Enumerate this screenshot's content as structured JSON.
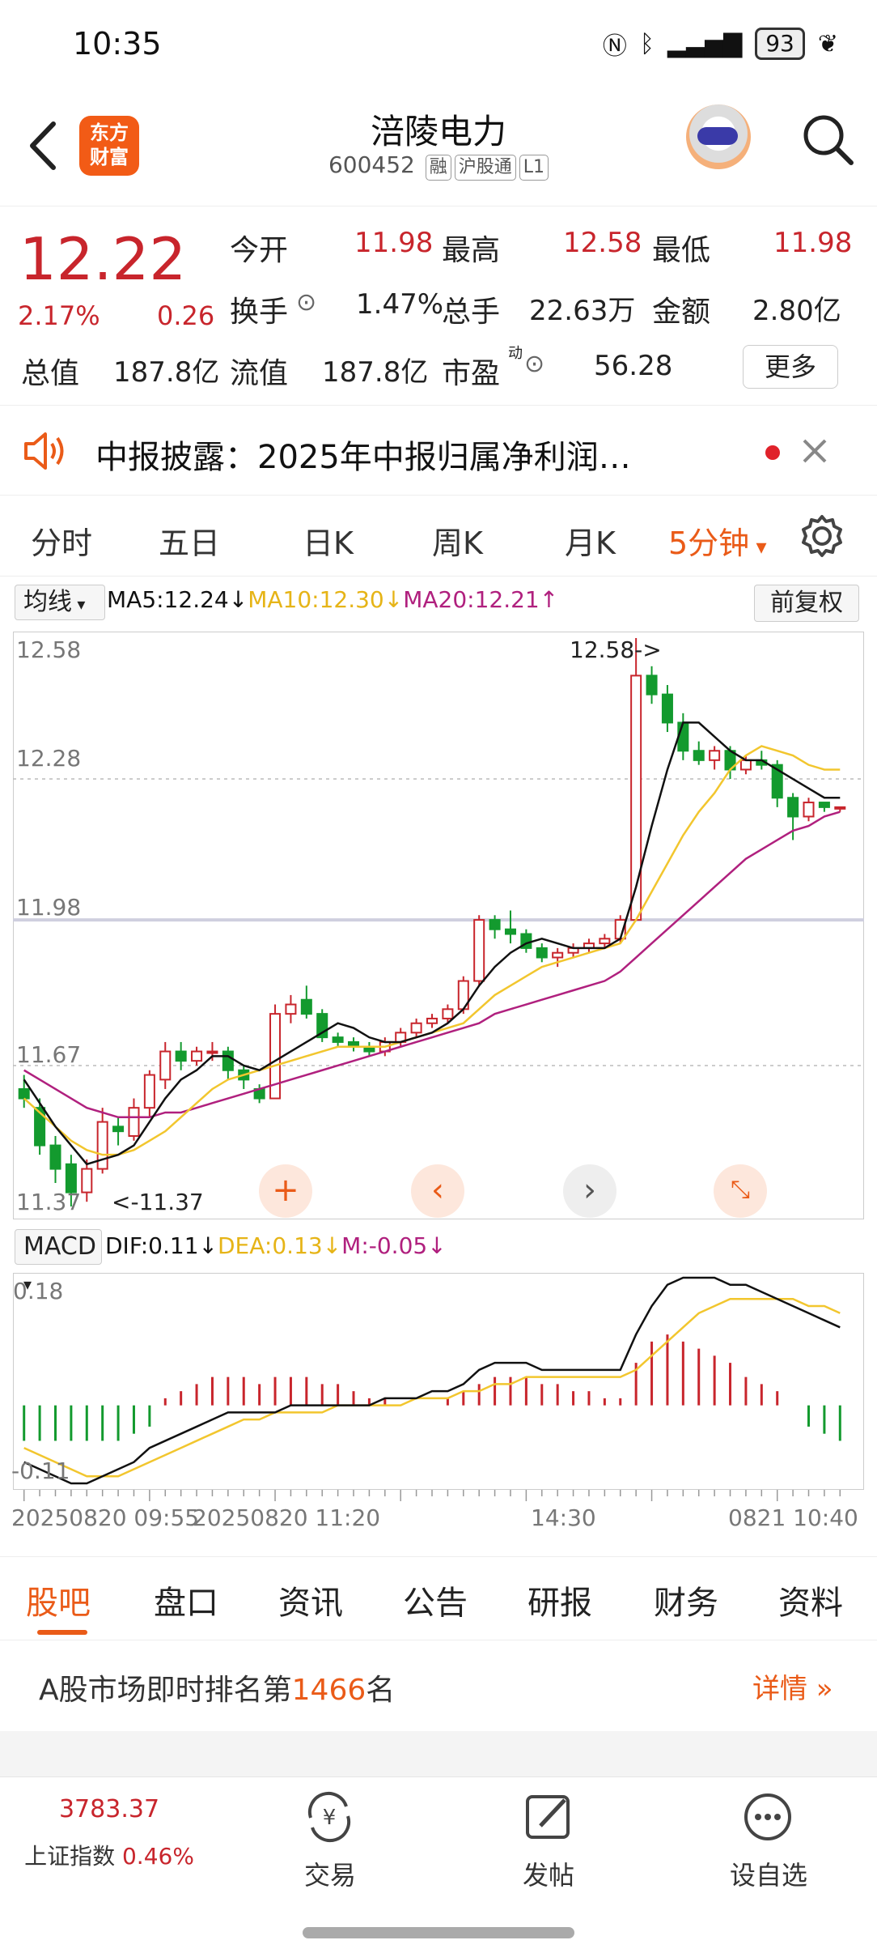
{
  "status_bar": {
    "time": "10:35",
    "battery": "93"
  },
  "header": {
    "logo_line1": "东方",
    "logo_line2": "财富",
    "stock_name": "涪陵电力",
    "stock_code": "600452",
    "tags": [
      "融",
      "沪股通",
      "L1"
    ]
  },
  "quote": {
    "price": "12.22",
    "change_pct": "2.17%",
    "change": "0.26",
    "open_label": "今开",
    "open": "11.98",
    "high_label": "最高",
    "high": "12.58",
    "low_label": "最低",
    "low": "11.98",
    "turnover_label": "换手",
    "turnover": "1.47%",
    "volume_label": "总手",
    "volume": "22.63万",
    "amount_label": "金额",
    "amount": "2.80亿",
    "total_cap_label": "总值",
    "total_cap": "187.8亿",
    "float_cap_label": "流值",
    "float_cap": "187.8亿",
    "pe_label": "市盈",
    "pe_sup": "动",
    "pe": "56.28",
    "more_label": "更多"
  },
  "notice": {
    "text": "中报披露：2025年中报归属净利润…"
  },
  "period_tabs": [
    "分时",
    "五日",
    "日K",
    "周K",
    "月K",
    "5分钟"
  ],
  "active_period": "5分钟",
  "ma_bar": {
    "button": "均线",
    "ma5": "MA5:12.24↓",
    "ma10": "MA10:12.30↓",
    "ma20": "MA20:12.21↑",
    "adjust_button": "前复权"
  },
  "kline_chart": {
    "y_labels": [
      "12.58",
      "12.28",
      "11.98",
      "11.67",
      "11.37"
    ],
    "max_annotation": "12.58->",
    "min_annotation": "<-11.37"
  },
  "macd_bar": {
    "button": "MACD",
    "dif": "DIF:0.11↓",
    "dea": "DEA:0.13↓",
    "m": "M:-0.05↓"
  },
  "macd_chart": {
    "y_top": "0.18",
    "y_bottom": "-0.11"
  },
  "time_axis": [
    "20250820 09:55",
    "20250820 11:20",
    "14:30",
    "0821 10:40"
  ],
  "chart_data": [
    {
      "type": "candlestick",
      "ylim": [
        11.37,
        12.58
      ],
      "candles": [
        {
          "o": 11.62,
          "c": 11.6,
          "h": 11.65,
          "l": 11.58
        },
        {
          "o": 11.58,
          "c": 11.5,
          "h": 11.6,
          "l": 11.48
        },
        {
          "o": 11.5,
          "c": 11.45,
          "h": 11.52,
          "l": 11.42
        },
        {
          "o": 11.46,
          "c": 11.4,
          "h": 11.48,
          "l": 11.37
        },
        {
          "o": 11.4,
          "c": 11.45,
          "h": 11.47,
          "l": 11.38
        },
        {
          "o": 11.45,
          "c": 11.55,
          "h": 11.58,
          "l": 11.44
        },
        {
          "o": 11.54,
          "c": 11.53,
          "h": 11.56,
          "l": 11.5
        },
        {
          "o": 11.52,
          "c": 11.58,
          "h": 11.6,
          "l": 11.51
        },
        {
          "o": 11.58,
          "c": 11.65,
          "h": 11.66,
          "l": 11.56
        },
        {
          "o": 11.64,
          "c": 11.7,
          "h": 11.72,
          "l": 11.62
        },
        {
          "o": 11.7,
          "c": 11.68,
          "h": 11.72,
          "l": 11.66
        },
        {
          "o": 11.68,
          "c": 11.7,
          "h": 11.71,
          "l": 11.67
        },
        {
          "o": 11.7,
          "c": 11.7,
          "h": 11.72,
          "l": 11.68
        },
        {
          "o": 11.7,
          "c": 11.66,
          "h": 11.71,
          "l": 11.64
        },
        {
          "o": 11.66,
          "c": 11.64,
          "h": 11.67,
          "l": 11.62
        },
        {
          "o": 11.62,
          "c": 11.6,
          "h": 11.63,
          "l": 11.59
        },
        {
          "o": 11.6,
          "c": 11.78,
          "h": 11.8,
          "l": 11.6
        },
        {
          "o": 11.78,
          "c": 11.8,
          "h": 11.82,
          "l": 11.76
        },
        {
          "o": 11.81,
          "c": 11.78,
          "h": 11.84,
          "l": 11.77
        },
        {
          "o": 11.78,
          "c": 11.73,
          "h": 11.79,
          "l": 11.72
        },
        {
          "o": 11.73,
          "c": 11.72,
          "h": 11.74,
          "l": 11.71
        },
        {
          "o": 11.72,
          "c": 11.71,
          "h": 11.73,
          "l": 11.7
        },
        {
          "o": 11.71,
          "c": 11.7,
          "h": 11.72,
          "l": 11.69
        },
        {
          "o": 11.7,
          "c": 11.72,
          "h": 11.73,
          "l": 11.69
        },
        {
          "o": 11.72,
          "c": 11.74,
          "h": 11.75,
          "l": 11.71
        },
        {
          "o": 11.74,
          "c": 11.76,
          "h": 11.77,
          "l": 11.73
        },
        {
          "o": 11.76,
          "c": 11.77,
          "h": 11.78,
          "l": 11.75
        },
        {
          "o": 11.77,
          "c": 11.79,
          "h": 11.8,
          "l": 11.76
        },
        {
          "o": 11.79,
          "c": 11.85,
          "h": 11.86,
          "l": 11.78
        },
        {
          "o": 11.85,
          "c": 11.98,
          "h": 11.99,
          "l": 11.84
        },
        {
          "o": 11.98,
          "c": 11.96,
          "h": 11.99,
          "l": 11.94
        },
        {
          "o": 11.96,
          "c": 11.95,
          "h": 12.0,
          "l": 11.93
        },
        {
          "o": 11.95,
          "c": 11.92,
          "h": 11.96,
          "l": 11.91
        },
        {
          "o": 11.92,
          "c": 11.9,
          "h": 11.93,
          "l": 11.89
        },
        {
          "o": 11.9,
          "c": 11.91,
          "h": 11.92,
          "l": 11.88
        },
        {
          "o": 11.91,
          "c": 11.92,
          "h": 11.93,
          "l": 11.9
        },
        {
          "o": 11.92,
          "c": 11.93,
          "h": 11.94,
          "l": 11.91
        },
        {
          "o": 11.93,
          "c": 11.94,
          "h": 11.95,
          "l": 11.92
        },
        {
          "o": 11.94,
          "c": 11.98,
          "h": 11.99,
          "l": 11.93
        },
        {
          "o": 11.98,
          "c": 12.5,
          "h": 12.58,
          "l": 11.98
        },
        {
          "o": 12.5,
          "c": 12.46,
          "h": 12.52,
          "l": 12.44
        },
        {
          "o": 12.46,
          "c": 12.4,
          "h": 12.48,
          "l": 12.38
        },
        {
          "o": 12.4,
          "c": 12.34,
          "h": 12.42,
          "l": 12.32
        },
        {
          "o": 12.34,
          "c": 12.32,
          "h": 12.36,
          "l": 12.31
        },
        {
          "o": 12.32,
          "c": 12.34,
          "h": 12.35,
          "l": 12.3
        },
        {
          "o": 12.34,
          "c": 12.3,
          "h": 12.35,
          "l": 12.28
        },
        {
          "o": 12.3,
          "c": 12.32,
          "h": 12.33,
          "l": 12.29
        },
        {
          "o": 12.32,
          "c": 12.31,
          "h": 12.34,
          "l": 12.3
        },
        {
          "o": 12.31,
          "c": 12.24,
          "h": 12.32,
          "l": 12.22
        },
        {
          "o": 12.24,
          "c": 12.2,
          "h": 12.25,
          "l": 12.15
        },
        {
          "o": 12.2,
          "c": 12.23,
          "h": 12.24,
          "l": 12.19
        },
        {
          "o": 12.23,
          "c": 12.22,
          "h": 12.23,
          "l": 12.21
        },
        {
          "o": 12.22,
          "c": 12.22,
          "h": 12.22,
          "l": 12.21
        }
      ],
      "ma5": [
        11.64,
        11.59,
        11.54,
        11.5,
        11.46,
        11.47,
        11.48,
        11.5,
        11.55,
        11.6,
        11.64,
        11.66,
        11.69,
        11.69,
        11.67,
        11.66,
        11.68,
        11.7,
        11.72,
        11.74,
        11.76,
        11.75,
        11.73,
        11.72,
        11.72,
        11.73,
        11.74,
        11.76,
        11.79,
        11.84,
        11.88,
        11.91,
        11.93,
        11.94,
        11.93,
        11.92,
        11.92,
        11.92,
        11.94,
        12.05,
        12.18,
        12.3,
        12.4,
        12.4,
        12.37,
        12.34,
        12.32,
        12.32,
        12.3,
        12.28,
        12.26,
        12.24,
        12.24
      ],
      "ma10": [
        11.6,
        11.57,
        11.54,
        11.51,
        11.49,
        11.48,
        11.48,
        11.49,
        11.51,
        11.53,
        11.56,
        11.59,
        11.62,
        11.64,
        11.65,
        11.66,
        11.67,
        11.68,
        11.69,
        11.7,
        11.71,
        11.71,
        11.71,
        11.71,
        11.72,
        11.73,
        11.74,
        11.75,
        11.76,
        11.79,
        11.82,
        11.84,
        11.86,
        11.88,
        11.89,
        11.9,
        11.91,
        11.92,
        11.93,
        11.98,
        12.04,
        12.1,
        12.16,
        12.21,
        12.25,
        12.3,
        12.33,
        12.35,
        12.34,
        12.33,
        12.31,
        12.3,
        12.3
      ],
      "ma20": [
        11.66,
        11.64,
        11.62,
        11.6,
        11.58,
        11.57,
        11.56,
        11.56,
        11.56,
        11.57,
        11.57,
        11.58,
        11.59,
        11.6,
        11.61,
        11.62,
        11.63,
        11.64,
        11.65,
        11.66,
        11.67,
        11.68,
        11.69,
        11.7,
        11.71,
        11.72,
        11.73,
        11.74,
        11.75,
        11.76,
        11.78,
        11.79,
        11.8,
        11.81,
        11.82,
        11.83,
        11.84,
        11.85,
        11.87,
        11.9,
        11.93,
        11.96,
        11.99,
        12.02,
        12.05,
        12.08,
        12.11,
        12.13,
        12.15,
        12.17,
        12.18,
        12.2,
        12.21
      ]
    },
    {
      "type": "bar",
      "name": "MACD",
      "ylim": [
        -0.11,
        0.18
      ],
      "m": [
        -0.05,
        -0.05,
        -0.05,
        -0.05,
        -0.05,
        -0.05,
        -0.05,
        -0.04,
        -0.03,
        0.01,
        0.02,
        0.03,
        0.04,
        0.04,
        0.04,
        0.03,
        0.04,
        0.04,
        0.04,
        0.03,
        0.03,
        0.02,
        0.01,
        0.01,
        0.0,
        0.0,
        0.0,
        0.01,
        0.02,
        0.03,
        0.04,
        0.04,
        0.04,
        0.03,
        0.03,
        0.02,
        0.02,
        0.01,
        0.01,
        0.06,
        0.09,
        0.1,
        0.09,
        0.08,
        0.07,
        0.06,
        0.04,
        0.03,
        0.02,
        0.0,
        -0.03,
        -0.04,
        -0.05
      ],
      "dif": [
        -0.08,
        -0.09,
        -0.1,
        -0.11,
        -0.11,
        -0.1,
        -0.09,
        -0.08,
        -0.06,
        -0.05,
        -0.04,
        -0.03,
        -0.02,
        -0.01,
        -0.01,
        -0.01,
        -0.01,
        0.0,
        0.0,
        0.0,
        0.0,
        0.0,
        0.0,
        0.01,
        0.01,
        0.01,
        0.02,
        0.02,
        0.03,
        0.05,
        0.06,
        0.06,
        0.06,
        0.05,
        0.05,
        0.05,
        0.05,
        0.05,
        0.05,
        0.1,
        0.14,
        0.17,
        0.18,
        0.18,
        0.18,
        0.17,
        0.17,
        0.16,
        0.15,
        0.14,
        0.13,
        0.12,
        0.11
      ],
      "dea": [
        -0.06,
        -0.07,
        -0.08,
        -0.09,
        -0.1,
        -0.1,
        -0.1,
        -0.09,
        -0.08,
        -0.07,
        -0.06,
        -0.05,
        -0.04,
        -0.03,
        -0.02,
        -0.02,
        -0.01,
        -0.01,
        -0.01,
        -0.01,
        0.0,
        0.0,
        0.0,
        0.0,
        0.0,
        0.01,
        0.01,
        0.01,
        0.02,
        0.02,
        0.03,
        0.03,
        0.04,
        0.04,
        0.04,
        0.04,
        0.04,
        0.04,
        0.04,
        0.05,
        0.07,
        0.09,
        0.11,
        0.13,
        0.14,
        0.15,
        0.15,
        0.15,
        0.15,
        0.15,
        0.14,
        0.14,
        0.13
      ]
    }
  ],
  "bottom_tabs": [
    "股吧",
    "盘口",
    "资讯",
    "公告",
    "研报",
    "财务",
    "资料"
  ],
  "rank": {
    "prefix": "A股市场即时排名第",
    "number": "1466",
    "suffix": "名",
    "detail": "详情"
  },
  "bottom_nav": {
    "index_value": "3783.37",
    "index_name": "上证指数",
    "index_change": "0.46%",
    "trade": "交易",
    "post": "发帖",
    "watchlist": "设自选"
  },
  "colors": {
    "up": "#c8252c",
    "down": "#139a2e",
    "accent": "#ea5b18",
    "ma5": "#111111",
    "ma10": "#f2c62e",
    "ma20": "#b0207e"
  }
}
